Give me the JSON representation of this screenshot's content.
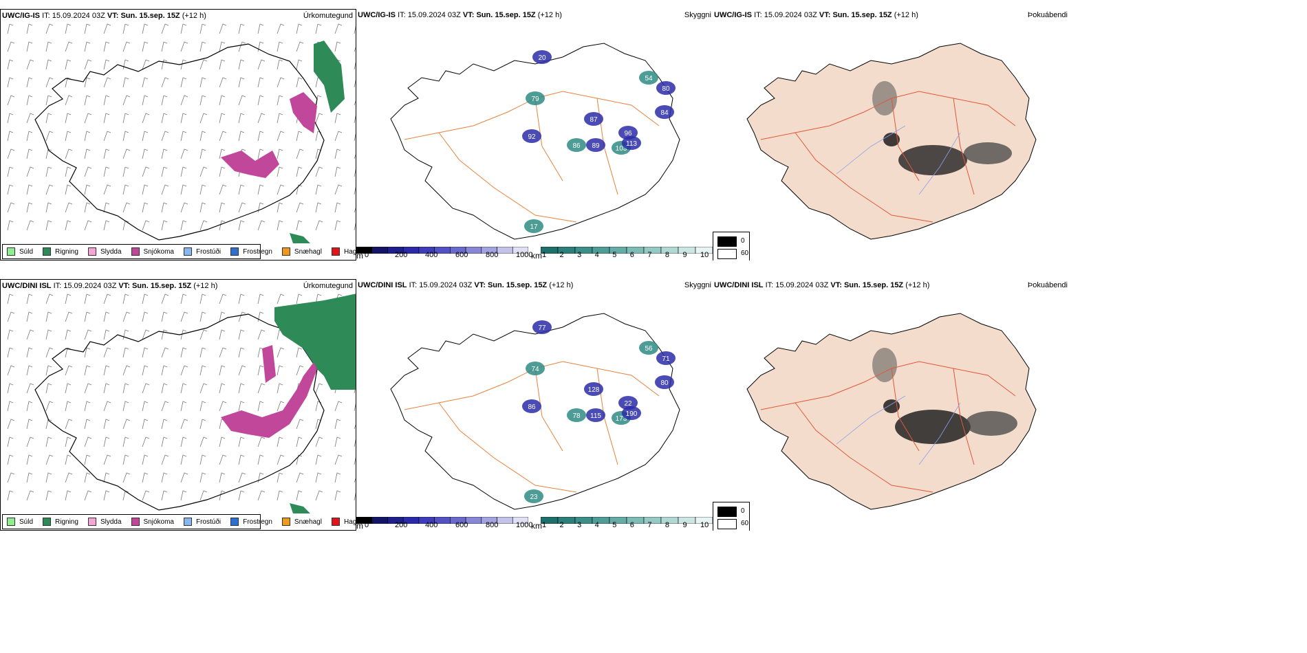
{
  "rows": [
    {
      "model": "UWC/IG-IS",
      "it_label": "IT:",
      "it_value": "15.09.2024 03Z",
      "vt_label": "VT:",
      "vt_value": "Sun. 15.sep. 15Z",
      "lead": "(+12 h)",
      "precip_field": "Úrkomutegund",
      "vis_field": "Skyggni",
      "fog_field": "Þokuábendi",
      "height_labels": [
        "79",
        "20",
        "92",
        "86",
        "89",
        "87",
        "103",
        "113",
        "96",
        "54",
        "80",
        "84",
        "17"
      ],
      "vis_labels": []
    },
    {
      "model": "UWC/DINI ISL",
      "it_label": "IT:",
      "it_value": "15.09.2024 03Z",
      "vt_label": "VT:",
      "vt_value": "Sun. 15.sep. 15Z",
      "lead": "(+12 h)",
      "precip_field": "Úrkomutegund",
      "vis_field": "Skyggni",
      "fog_field": "Þokuábendi",
      "height_labels": [
        "74",
        "77",
        "86",
        "78",
        "115",
        "128",
        "173",
        "190",
        "22",
        "56",
        "71",
        "80",
        "23"
      ],
      "vis_labels": []
    }
  ],
  "precip_legend": [
    {
      "label": "Súld",
      "color": "#90ee90"
    },
    {
      "label": "Rigning",
      "color": "#2e8b57"
    },
    {
      "label": "Slydda",
      "color": "#f4a6d7"
    },
    {
      "label": "Snjókoma",
      "color": "#c0479a"
    },
    {
      "label": "Frostúði",
      "color": "#87b7ee"
    },
    {
      "label": "Frostregn",
      "color": "#2f6fcf"
    },
    {
      "label": "Snæhagl",
      "color": "#ef9a1a"
    },
    {
      "label": "Haglél",
      "color": "#e3131b"
    }
  ],
  "height_bar": {
    "unit": "m",
    "ticks": [
      "0",
      "200",
      "400",
      "600",
      "800",
      "1000"
    ],
    "colors": [
      "#000000",
      "#141466",
      "#1f1f8c",
      "#2b2ba8",
      "#3d3db9",
      "#5252c2",
      "#6a6acc",
      "#8787d6",
      "#a3a3df",
      "#c3c3ea",
      "#e0e0f4"
    ]
  },
  "vis_bar": {
    "unit": "km",
    "ticks": [
      "1",
      "2",
      "3",
      "4",
      "5",
      "6",
      "7",
      "8",
      "9",
      "10"
    ],
    "colors": [
      "#1f6f6a",
      "#2d7f79",
      "#3d8e88",
      "#509d97",
      "#66aca6",
      "#7dbbb5",
      "#96c9c4",
      "#b1d8d4",
      "#cde6e3",
      "#e8f4f3"
    ]
  },
  "fog_legend": [
    {
      "label": "0",
      "color": "#000000"
    },
    {
      "label": "60",
      "color": "#ffffff"
    }
  ],
  "colors": {
    "coast": "#000000",
    "roads": "#e8823a",
    "roads_fog": "#e0583a",
    "rivers": "#8aa0f0",
    "land_fog": "#f3dccb",
    "rain": "#2e8b57",
    "snow": "#c0479a"
  }
}
